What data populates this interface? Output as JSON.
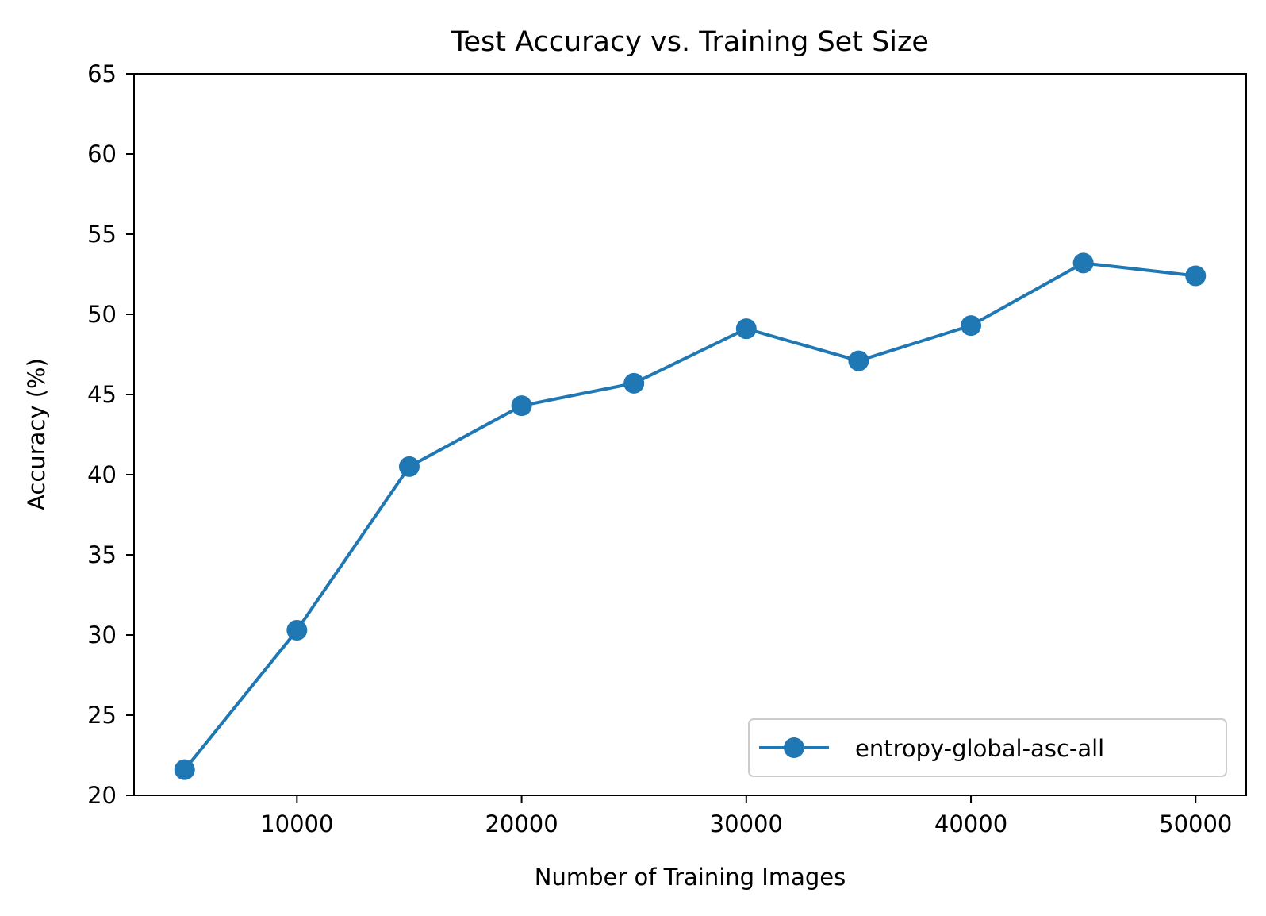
{
  "chart_data": {
    "type": "line",
    "title": "Test Accuracy vs. Training Set Size",
    "xlabel": "Number of Training Images",
    "ylabel": "Accuracy (%)",
    "xlim": [
      2750,
      52250
    ],
    "ylim": [
      20,
      65
    ],
    "xticks": [
      10000,
      20000,
      30000,
      40000,
      50000
    ],
    "yticks": [
      20,
      25,
      30,
      35,
      40,
      45,
      50,
      55,
      60,
      65
    ],
    "grid": false,
    "legend_position": "lower-right",
    "series": [
      {
        "name": "entropy-global-asc-all",
        "color": "#1f77b4",
        "marker": "circle",
        "x": [
          5000,
          10000,
          15000,
          20000,
          25000,
          30000,
          35000,
          40000,
          45000,
          50000
        ],
        "y": [
          21.6,
          30.3,
          40.5,
          44.3,
          45.7,
          49.1,
          47.1,
          49.3,
          53.2,
          52.4
        ]
      }
    ]
  }
}
